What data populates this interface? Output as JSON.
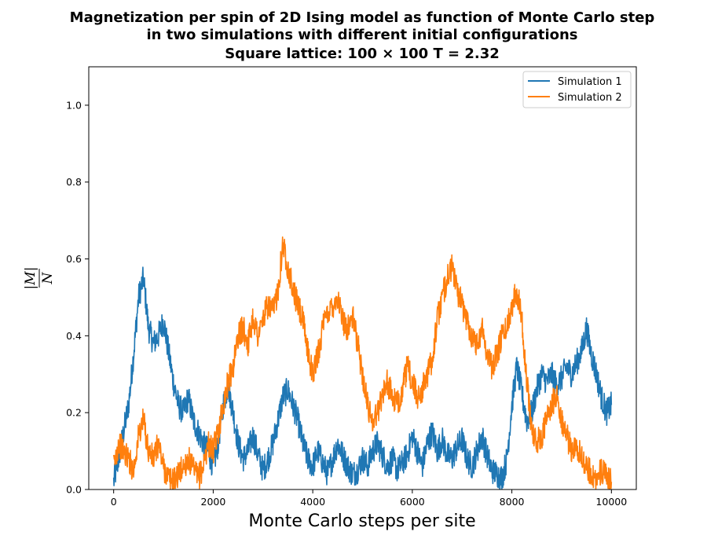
{
  "chart_data": {
    "type": "line",
    "title_lines": [
      "Magnetization per spin of 2D Ising model as function of Monte Carlo step",
      "in two simulations with different initial configurations",
      "Square lattice: 100 × 100    T = 2.32"
    ],
    "xlabel": "Monte Carlo steps per site",
    "ylabel": "|M| / N",
    "ylabel_numerator": "|M|",
    "ylabel_denominator": "N",
    "xlim": [
      -500,
      10500
    ],
    "ylim": [
      0.0,
      1.1
    ],
    "xticks": [
      0,
      2000,
      4000,
      6000,
      8000,
      10000
    ],
    "xtick_labels": [
      "0",
      "2000",
      "4000",
      "6000",
      "8000",
      "10000"
    ],
    "yticks": [
      0.0,
      0.2,
      0.4,
      0.6,
      0.8,
      1.0
    ],
    "ytick_labels": [
      "0.0",
      "0.2",
      "0.4",
      "0.6",
      "0.8",
      "1.0"
    ],
    "grid": false,
    "legend_position": "top-right",
    "series": [
      {
        "name": "Simulation 1",
        "color": "#1f77b4",
        "x": [
          0,
          100,
          200,
          300,
          400,
          500,
          600,
          700,
          800,
          900,
          1000,
          1100,
          1200,
          1300,
          1400,
          1500,
          1600,
          1700,
          1800,
          1900,
          2000,
          2100,
          2200,
          2300,
          2400,
          2500,
          2600,
          2700,
          2800,
          2900,
          3000,
          3100,
          3200,
          3300,
          3400,
          3500,
          3600,
          3700,
          3800,
          3900,
          4000,
          4100,
          4200,
          4300,
          4400,
          4500,
          4600,
          4700,
          4800,
          4900,
          5000,
          5100,
          5200,
          5300,
          5400,
          5500,
          5600,
          5700,
          5800,
          5900,
          6000,
          6100,
          6200,
          6300,
          6400,
          6500,
          6600,
          6700,
          6800,
          6900,
          7000,
          7100,
          7200,
          7300,
          7400,
          7500,
          7600,
          7700,
          7800,
          7900,
          8000,
          8100,
          8200,
          8300,
          8400,
          8500,
          8600,
          8700,
          8800,
          8900,
          9000,
          9100,
          9200,
          9300,
          9400,
          9500,
          9600,
          9700,
          9800,
          9900,
          10000
        ],
        "y": [
          0.02,
          0.08,
          0.15,
          0.22,
          0.35,
          0.5,
          0.55,
          0.42,
          0.38,
          0.4,
          0.44,
          0.36,
          0.28,
          0.22,
          0.2,
          0.24,
          0.18,
          0.15,
          0.12,
          0.1,
          0.06,
          0.12,
          0.22,
          0.27,
          0.2,
          0.12,
          0.08,
          0.1,
          0.14,
          0.09,
          0.05,
          0.08,
          0.12,
          0.18,
          0.24,
          0.26,
          0.22,
          0.18,
          0.12,
          0.08,
          0.06,
          0.1,
          0.07,
          0.04,
          0.08,
          0.12,
          0.09,
          0.06,
          0.04,
          0.05,
          0.08,
          0.06,
          0.1,
          0.12,
          0.09,
          0.06,
          0.08,
          0.05,
          0.07,
          0.09,
          0.14,
          0.1,
          0.06,
          0.12,
          0.15,
          0.1,
          0.13,
          0.09,
          0.08,
          0.11,
          0.13,
          0.08,
          0.06,
          0.1,
          0.14,
          0.09,
          0.05,
          0.04,
          0.03,
          0.08,
          0.22,
          0.32,
          0.25,
          0.18,
          0.2,
          0.26,
          0.3,
          0.28,
          0.3,
          0.27,
          0.29,
          0.32,
          0.3,
          0.33,
          0.36,
          0.42,
          0.35,
          0.3,
          0.24,
          0.2,
          0.22
        ]
      },
      {
        "name": "Simulation 2",
        "color": "#ff7f0e",
        "x": [
          0,
          100,
          200,
          300,
          400,
          500,
          600,
          700,
          800,
          900,
          1000,
          1100,
          1200,
          1300,
          1400,
          1500,
          1600,
          1700,
          1800,
          1900,
          2000,
          2100,
          2200,
          2300,
          2400,
          2500,
          2600,
          2700,
          2800,
          2900,
          3000,
          3100,
          3200,
          3300,
          3400,
          3500,
          3600,
          3700,
          3800,
          3900,
          4000,
          4100,
          4200,
          4300,
          4400,
          4500,
          4600,
          4700,
          4800,
          4900,
          5000,
          5100,
          5200,
          5300,
          5400,
          5500,
          5600,
          5700,
          5800,
          5900,
          6000,
          6100,
          6200,
          6300,
          6400,
          6500,
          6600,
          6700,
          6800,
          6900,
          7000,
          7100,
          7200,
          7300,
          7400,
          7500,
          7600,
          7700,
          7800,
          7900,
          8000,
          8100,
          8200,
          8300,
          8400,
          8500,
          8600,
          8700,
          8800,
          8900,
          9000,
          9100,
          9200,
          9300,
          9400,
          9500,
          9600,
          9700,
          9800,
          9900,
          10000
        ],
        "y": [
          0.06,
          0.12,
          0.1,
          0.08,
          0.05,
          0.14,
          0.18,
          0.1,
          0.08,
          0.12,
          0.06,
          0.03,
          0.02,
          0.04,
          0.06,
          0.08,
          0.05,
          0.03,
          0.06,
          0.12,
          0.1,
          0.15,
          0.22,
          0.28,
          0.32,
          0.4,
          0.42,
          0.38,
          0.45,
          0.4,
          0.44,
          0.48,
          0.46,
          0.52,
          0.64,
          0.58,
          0.52,
          0.48,
          0.44,
          0.36,
          0.3,
          0.35,
          0.42,
          0.46,
          0.48,
          0.5,
          0.44,
          0.42,
          0.45,
          0.38,
          0.3,
          0.22,
          0.18,
          0.2,
          0.25,
          0.28,
          0.24,
          0.22,
          0.26,
          0.32,
          0.28,
          0.24,
          0.26,
          0.3,
          0.34,
          0.44,
          0.5,
          0.55,
          0.58,
          0.52,
          0.48,
          0.44,
          0.4,
          0.38,
          0.42,
          0.36,
          0.32,
          0.35,
          0.4,
          0.42,
          0.48,
          0.52,
          0.45,
          0.28,
          0.16,
          0.12,
          0.14,
          0.18,
          0.22,
          0.25,
          0.18,
          0.14,
          0.1,
          0.12,
          0.08,
          0.06,
          0.04,
          0.03,
          0.05,
          0.03,
          0.02
        ]
      }
    ]
  }
}
